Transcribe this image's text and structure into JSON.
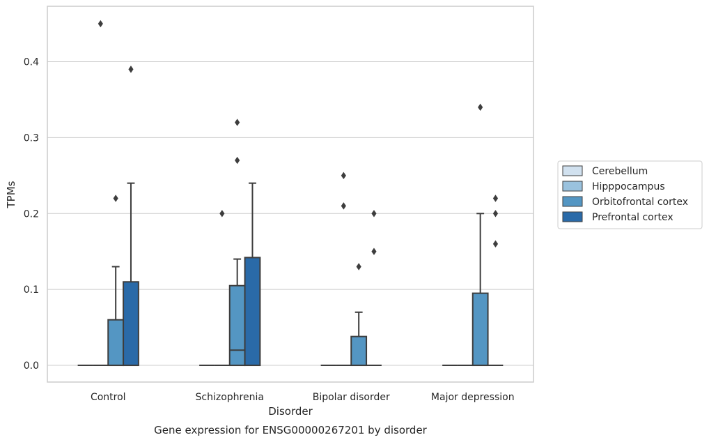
{
  "chart_data": {
    "type": "box",
    "title": "",
    "caption": "Gene expression for ENSG00000267201 by disorder",
    "xlabel": "Disorder",
    "ylabel": "TPMs",
    "ylim": [
      -0.022,
      0.473
    ],
    "yticks": [
      0.0,
      0.1,
      0.2,
      0.3,
      0.4
    ],
    "ytick_labels": [
      "0.0",
      "0.1",
      "0.2",
      "0.3",
      "0.4"
    ],
    "grid": "horizontal",
    "legend_position": "right",
    "categories": [
      "Control",
      "Schizophrenia",
      "Bipolar disorder",
      "Major depression"
    ],
    "series": [
      {
        "name": "Cerebellum",
        "color": "#d1e1ef",
        "boxes": [
          {
            "q1": 0,
            "median": 0,
            "q3": 0,
            "whisker_low": 0,
            "whisker_high": 0,
            "outliers": []
          },
          {
            "q1": 0,
            "median": 0,
            "q3": 0,
            "whisker_low": 0,
            "whisker_high": 0,
            "outliers": []
          },
          {
            "q1": 0,
            "median": 0,
            "q3": 0,
            "whisker_low": 0,
            "whisker_high": 0,
            "outliers": []
          },
          {
            "q1": 0,
            "median": 0,
            "q3": 0,
            "whisker_low": 0,
            "whisker_high": 0,
            "outliers": []
          }
        ]
      },
      {
        "name": "Hipppocampus",
        "color": "#9ac2de",
        "boxes": [
          {
            "q1": 0,
            "median": 0,
            "q3": 0,
            "whisker_low": 0,
            "whisker_high": 0,
            "outliers": [
              0.45
            ]
          },
          {
            "q1": 0,
            "median": 0,
            "q3": 0,
            "whisker_low": 0,
            "whisker_high": 0,
            "outliers": [
              0.2
            ]
          },
          {
            "q1": 0,
            "median": 0,
            "q3": 0,
            "whisker_low": 0,
            "whisker_high": 0,
            "outliers": [
              0.25,
              0.21
            ]
          },
          {
            "q1": 0,
            "median": 0,
            "q3": 0,
            "whisker_low": 0,
            "whisker_high": 0,
            "outliers": []
          }
        ]
      },
      {
        "name": "Orbitofrontal cortex",
        "color": "#5496c3",
        "boxes": [
          {
            "q1": 0,
            "median": 0,
            "q3": 0.06,
            "whisker_low": 0,
            "whisker_high": 0.13,
            "outliers": [
              0.22
            ]
          },
          {
            "q1": 0,
            "median": 0.02,
            "q3": 0.105,
            "whisker_low": 0,
            "whisker_high": 0.14,
            "outliers": [
              0.32,
              0.27
            ]
          },
          {
            "q1": 0,
            "median": 0,
            "q3": 0.038,
            "whisker_low": 0,
            "whisker_high": 0.07,
            "outliers": [
              0.13
            ]
          },
          {
            "q1": 0,
            "median": 0,
            "q3": 0.095,
            "whisker_low": 0,
            "whisker_high": 0.2,
            "outliers": [
              0.34
            ]
          }
        ]
      },
      {
        "name": "Prefrontal cortex",
        "color": "#2a6aa8",
        "boxes": [
          {
            "q1": 0,
            "median": 0,
            "q3": 0.11,
            "whisker_low": 0,
            "whisker_high": 0.24,
            "outliers": [
              0.39
            ]
          },
          {
            "q1": 0,
            "median": 0,
            "q3": 0.142,
            "whisker_low": 0,
            "whisker_high": 0.24,
            "outliers": []
          },
          {
            "q1": 0,
            "median": 0,
            "q3": 0,
            "whisker_low": 0,
            "whisker_high": 0,
            "outliers": [
              0.2,
              0.15
            ]
          },
          {
            "q1": 0,
            "median": 0,
            "q3": 0,
            "whisker_low": 0,
            "whisker_high": 0,
            "outliers": [
              0.22,
              0.2,
              0.16
            ]
          }
        ]
      }
    ]
  }
}
